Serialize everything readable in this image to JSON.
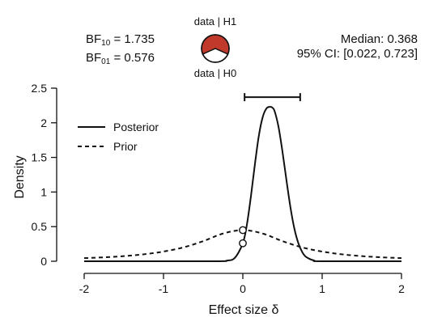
{
  "stats": {
    "bf10_base": "BF",
    "bf10_sub": "10",
    "bf10_value": " = 1.735",
    "bf01_base": "BF",
    "bf01_sub": "01",
    "bf01_value": " = 0.576",
    "median": "Median: 0.368",
    "ci": "95% CI: [0.022, 0.723]"
  },
  "pie": {
    "label_h1": "data | H1",
    "label_h0": "data | H0",
    "h1_fraction": 0.634,
    "h1_color": "#c0392b",
    "h0_color": "#ffffff"
  },
  "chart_data": {
    "type": "line",
    "xlabel": "Effect size δ",
    "ylabel": "Density",
    "xlim": [
      -2,
      2
    ],
    "ylim": [
      0,
      2.5
    ],
    "xticks": [
      "-2",
      "-1",
      "0",
      "1",
      "2"
    ],
    "xtick_values": [
      -2,
      -1,
      0,
      1,
      2
    ],
    "yticks": [
      "0",
      "0.5",
      "1",
      "1.5",
      "2",
      "2.5"
    ],
    "ytick_values": [
      0,
      0.5,
      1,
      1.5,
      2,
      2.5
    ],
    "legend_position": "top-left",
    "series": [
      {
        "name": "Posterior",
        "style": "solid",
        "x": [
          -2.0,
          -0.4,
          -0.2,
          -0.1,
          0.0,
          0.05,
          0.1,
          0.15,
          0.2,
          0.25,
          0.3,
          0.35,
          0.37,
          0.4,
          0.45,
          0.5,
          0.55,
          0.6,
          0.65,
          0.7,
          0.75,
          0.8,
          0.9,
          1.0,
          2.0
        ],
        "values": [
          0.0,
          0.0,
          0.01,
          0.05,
          0.26,
          0.52,
          0.92,
          1.38,
          1.8,
          2.08,
          2.21,
          2.23,
          2.22,
          2.17,
          1.94,
          1.58,
          1.17,
          0.78,
          0.47,
          0.26,
          0.13,
          0.06,
          0.01,
          0.0,
          0.0
        ]
      },
      {
        "name": "Prior",
        "style": "dashed",
        "x": [
          -2.0,
          -1.75,
          -1.5,
          -1.25,
          -1.0,
          -0.75,
          -0.5,
          -0.25,
          0.0,
          0.25,
          0.5,
          0.75,
          1.0,
          1.25,
          1.5,
          1.75,
          2.0
        ],
        "values": [
          0.045,
          0.057,
          0.074,
          0.1,
          0.14,
          0.2,
          0.29,
          0.4,
          0.45,
          0.4,
          0.29,
          0.2,
          0.14,
          0.1,
          0.074,
          0.057,
          0.045
        ]
      }
    ],
    "points": [
      {
        "x": 0,
        "y": 0.45
      },
      {
        "x": 0,
        "y": 0.26
      }
    ],
    "ci_interval": [
      0.022,
      0.723
    ],
    "ci_height": 2.37
  }
}
